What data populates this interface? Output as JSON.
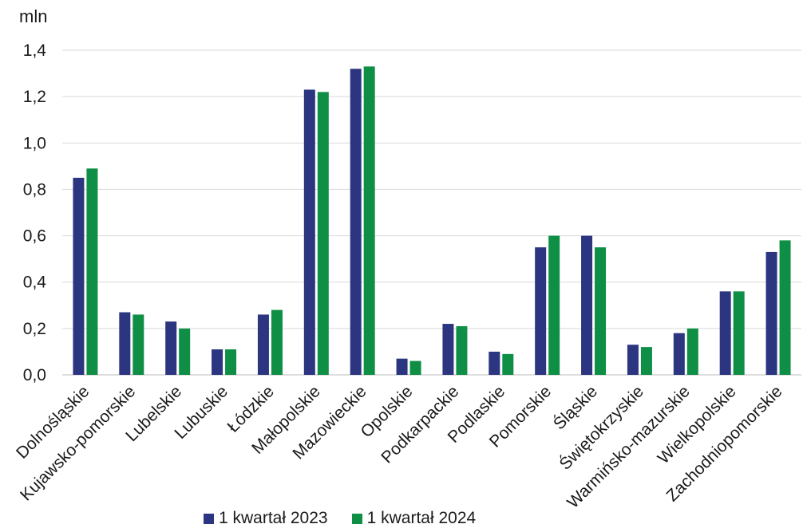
{
  "chart_data": {
    "type": "bar",
    "unit_label": "mln",
    "categories": [
      "Dolnośląskie",
      "Kujawsko-pomorskie",
      "Lubelskie",
      "Lubuskie",
      "Łódzkie",
      "Małopolskie",
      "Mazowieckie",
      "Opolskie",
      "Podkarpackie",
      "Podlaskie",
      "Pomorskie",
      "Śląskie",
      "Świętokrzyskie",
      "Warmińsko-mazurskie",
      "Wielkopolskie",
      "Zachodniopomorskie"
    ],
    "series": [
      {
        "name": "1 kwartał 2023",
        "color": "#2b3580",
        "values": [
          0.85,
          0.27,
          0.23,
          0.11,
          0.26,
          1.23,
          1.32,
          0.07,
          0.22,
          0.1,
          0.55,
          0.6,
          0.13,
          0.18,
          0.36,
          0.53
        ]
      },
      {
        "name": "1 kwartał 2024",
        "color": "#0e8f45",
        "values": [
          0.89,
          0.26,
          0.2,
          0.11,
          0.28,
          1.22,
          1.33,
          0.06,
          0.21,
          0.09,
          0.6,
          0.55,
          0.12,
          0.2,
          0.36,
          0.58
        ]
      }
    ],
    "yticks": [
      "0,0",
      "0,2",
      "0,4",
      "0,6",
      "0,8",
      "1,0",
      "1,2",
      "1,4"
    ],
    "ylim": [
      0,
      1.4
    ],
    "grid": true,
    "legend_position": "bottom"
  }
}
